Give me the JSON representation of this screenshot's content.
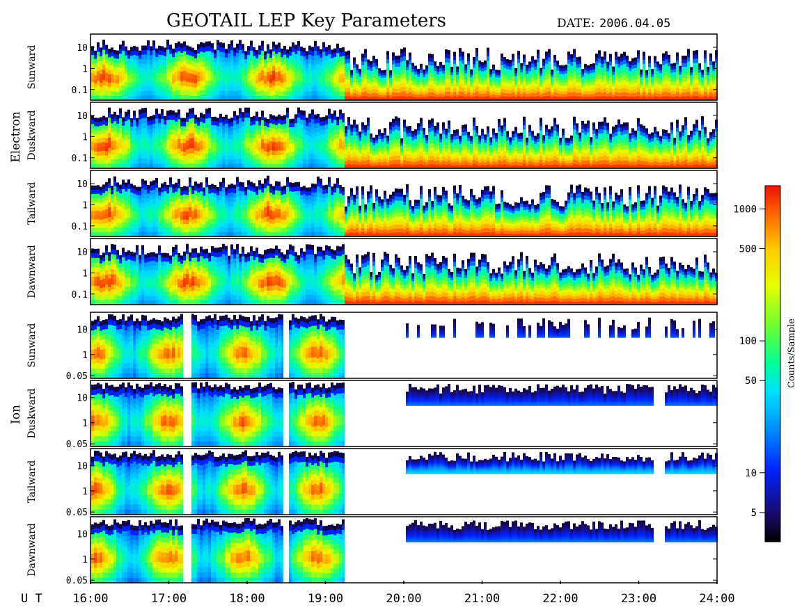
{
  "page": {
    "title": "GEOTAIL LEP Key Parameters",
    "date_label": "DATE:",
    "date_value": "2006.04.05",
    "ut_label": "U T"
  },
  "chart_data": {
    "type": "heatmap",
    "title": "GEOTAIL LEP Key Parameters",
    "x": {
      "label": "U T",
      "ticks": [
        "16:00",
        "17:00",
        "18:00",
        "19:00",
        "20:00",
        "21:00",
        "22:00",
        "23:00",
        "24:00"
      ],
      "range_hours": [
        16,
        24
      ]
    },
    "groups": [
      {
        "name": "Electron",
        "y_ticks": [
          "10",
          "1",
          "0.1"
        ],
        "panels": [
          {
            "name": "Sunward"
          },
          {
            "name": "Duskward"
          },
          {
            "name": "Tailward"
          },
          {
            "name": "Dawnward"
          }
        ]
      },
      {
        "name": "Ion",
        "y_ticks": [
          "10",
          "1",
          "0.05"
        ],
        "panels": [
          {
            "name": "Sunward"
          },
          {
            "name": "Duskward"
          },
          {
            "name": "Tailward"
          },
          {
            "name": "Dawnward"
          }
        ]
      }
    ],
    "colorbar": {
      "label": "Counts/Sample",
      "scale": "log",
      "range": [
        3,
        1500
      ],
      "ticks": [
        "5",
        "10",
        "50",
        "100",
        "500",
        "1000"
      ],
      "colormap": [
        "#000000",
        "#1a0a6e",
        "#0022ff",
        "#0099ff",
        "#00e0ff",
        "#00ff99",
        "#66ff33",
        "#e6ff00",
        "#ffcc00",
        "#ff6600",
        "#ee1100"
      ]
    }
  }
}
